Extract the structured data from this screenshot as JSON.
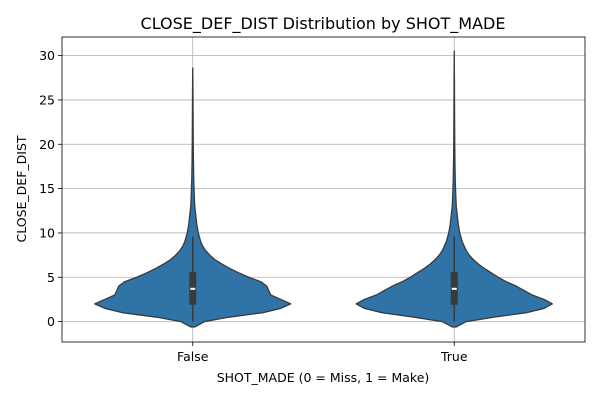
{
  "chart_data": {
    "type": "violin",
    "title": "CLOSE_DEF_DIST Distribution by SHOT_MADE",
    "xlabel": "SHOT_MADE (0 = Miss, 1 = Make)",
    "ylabel": "CLOSE_DEF_DIST",
    "categories": [
      "False",
      "True"
    ],
    "ylim": [
      -2.3,
      32.1
    ],
    "yticks": [
      0,
      5,
      10,
      15,
      20,
      25,
      30
    ],
    "grid": true,
    "violin_color": "#2f73a7",
    "violins": [
      {
        "category": "False",
        "range": [
          -0.6,
          28.6
        ],
        "q1": 1.9,
        "median": 3.7,
        "q3": 5.6,
        "whisker_low": 0.0,
        "whisker_high": 9.6,
        "density": [
          [
            -0.6,
            0.02
          ],
          [
            0.0,
            0.12
          ],
          [
            0.5,
            0.36
          ],
          [
            1.0,
            0.7
          ],
          [
            1.5,
            0.88
          ],
          [
            2.0,
            0.98
          ],
          [
            2.5,
            0.88
          ],
          [
            3.0,
            0.78
          ],
          [
            3.5,
            0.76
          ],
          [
            4.0,
            0.74
          ],
          [
            4.5,
            0.68
          ],
          [
            5.0,
            0.56
          ],
          [
            5.5,
            0.46
          ],
          [
            6.0,
            0.37
          ],
          [
            6.5,
            0.29
          ],
          [
            7.0,
            0.22
          ],
          [
            7.5,
            0.17
          ],
          [
            8.0,
            0.13
          ],
          [
            8.5,
            0.1
          ],
          [
            9.0,
            0.08
          ],
          [
            10.0,
            0.055
          ],
          [
            11.0,
            0.04
          ],
          [
            12.0,
            0.03
          ],
          [
            13.0,
            0.02
          ],
          [
            14.0,
            0.016
          ],
          [
            16.0,
            0.01
          ],
          [
            18.0,
            0.007
          ],
          [
            20.0,
            0.005
          ],
          [
            22.0,
            0.004
          ],
          [
            24.0,
            0.003
          ],
          [
            26.0,
            0.002
          ],
          [
            28.6,
            0.0
          ]
        ]
      },
      {
        "category": "True",
        "range": [
          -0.6,
          30.5
        ],
        "q1": 1.9,
        "median": 3.7,
        "q3": 5.6,
        "whisker_low": 0.0,
        "whisker_high": 9.6,
        "density": [
          [
            -0.6,
            0.02
          ],
          [
            0.0,
            0.12
          ],
          [
            0.5,
            0.4
          ],
          [
            1.0,
            0.72
          ],
          [
            1.5,
            0.9
          ],
          [
            2.0,
            0.98
          ],
          [
            2.5,
            0.9
          ],
          [
            3.0,
            0.78
          ],
          [
            3.5,
            0.7
          ],
          [
            4.0,
            0.62
          ],
          [
            4.5,
            0.52
          ],
          [
            5.0,
            0.44
          ],
          [
            5.5,
            0.37
          ],
          [
            6.0,
            0.3
          ],
          [
            6.5,
            0.24
          ],
          [
            7.0,
            0.19
          ],
          [
            7.5,
            0.15
          ],
          [
            8.0,
            0.12
          ],
          [
            8.5,
            0.1
          ],
          [
            9.0,
            0.08
          ],
          [
            10.0,
            0.055
          ],
          [
            11.0,
            0.04
          ],
          [
            12.0,
            0.03
          ],
          [
            13.0,
            0.02
          ],
          [
            14.0,
            0.016
          ],
          [
            16.0,
            0.01
          ],
          [
            18.0,
            0.007
          ],
          [
            20.0,
            0.005
          ],
          [
            22.0,
            0.004
          ],
          [
            24.0,
            0.003
          ],
          [
            27.0,
            0.002
          ],
          [
            30.5,
            0.0
          ]
        ]
      }
    ]
  }
}
